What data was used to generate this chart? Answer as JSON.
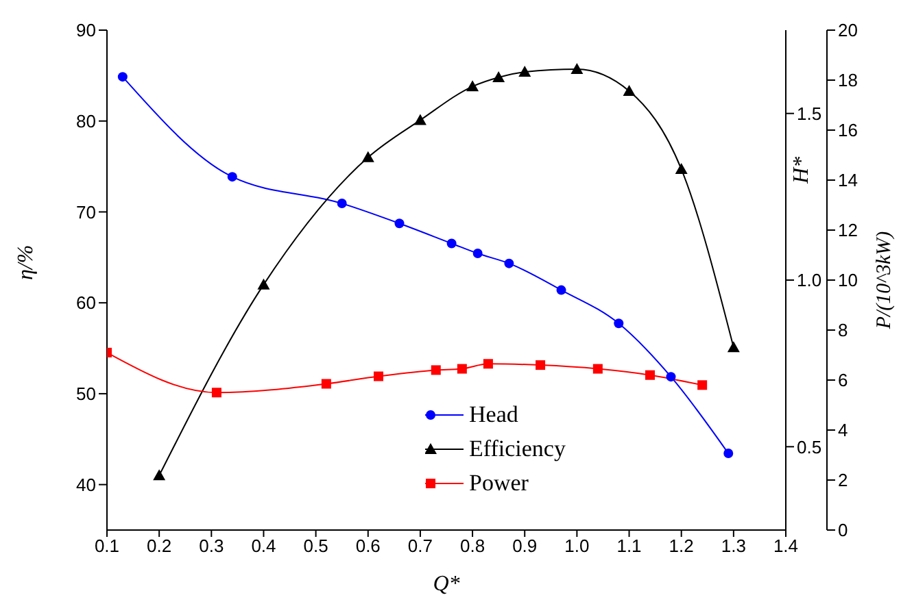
{
  "chart_data": {
    "type": "line",
    "xlabel": "Q*",
    "ylabel": "η/%",
    "y2label": "H*",
    "y3label": "P/(10^3kW)",
    "xlim": [
      0.1,
      1.4
    ],
    "xticks": [
      0.1,
      0.2,
      0.3,
      0.4,
      0.5,
      0.6,
      0.7,
      0.8,
      0.9,
      {
        "value": 1,
        "label": "1.0"
      },
      1.1,
      1.2,
      1.3,
      1.4
    ],
    "ylim": [
      35,
      90
    ],
    "yticks": [
      40,
      50,
      60,
      70,
      80,
      90
    ],
    "y2lim": [
      0.25,
      1.75
    ],
    "y2ticks": [
      0.5,
      {
        "value": 1,
        "label": "1.0"
      },
      1.5
    ],
    "y3lim": [
      0,
      20
    ],
    "y3ticks": [
      0,
      2,
      4,
      6,
      8,
      10,
      12,
      14,
      16,
      18,
      20
    ],
    "legend": "bottom",
    "series": [
      {
        "name": "Head",
        "color": "#0000ff",
        "axis": "y2",
        "marker": "circle",
        "x": [
          0.13,
          0.34,
          0.55,
          0.66,
          0.76,
          0.81,
          0.87,
          0.97,
          1.08,
          1.18,
          1.29
        ],
        "values": [
          1.61,
          1.31,
          1.23,
          1.17,
          1.11,
          1.08,
          1.05,
          0.97,
          0.87,
          0.71,
          0.48
        ]
      },
      {
        "name": "Efficiency",
        "color": "#000000",
        "axis": "y",
        "marker": "triangle",
        "x": [
          0.2,
          0.4,
          0.6,
          0.7,
          0.8,
          0.85,
          0.9,
          1.0,
          1.1,
          1.2,
          1.3
        ],
        "values": [
          41,
          62,
          76,
          80.1,
          83.8,
          84.8,
          85.4,
          85.7,
          83.3,
          74.7,
          55.1
        ]
      },
      {
        "name": "Power",
        "color": "#ff0000",
        "axis": "y3",
        "marker": "square",
        "x": [
          0.1,
          0.31,
          0.52,
          0.62,
          0.73,
          0.78,
          0.83,
          0.93,
          1.04,
          1.14,
          1.24
        ],
        "values": [
          7.1,
          5.5,
          5.85,
          6.15,
          6.4,
          6.45,
          6.65,
          6.6,
          6.45,
          6.2,
          5.8
        ]
      }
    ]
  }
}
